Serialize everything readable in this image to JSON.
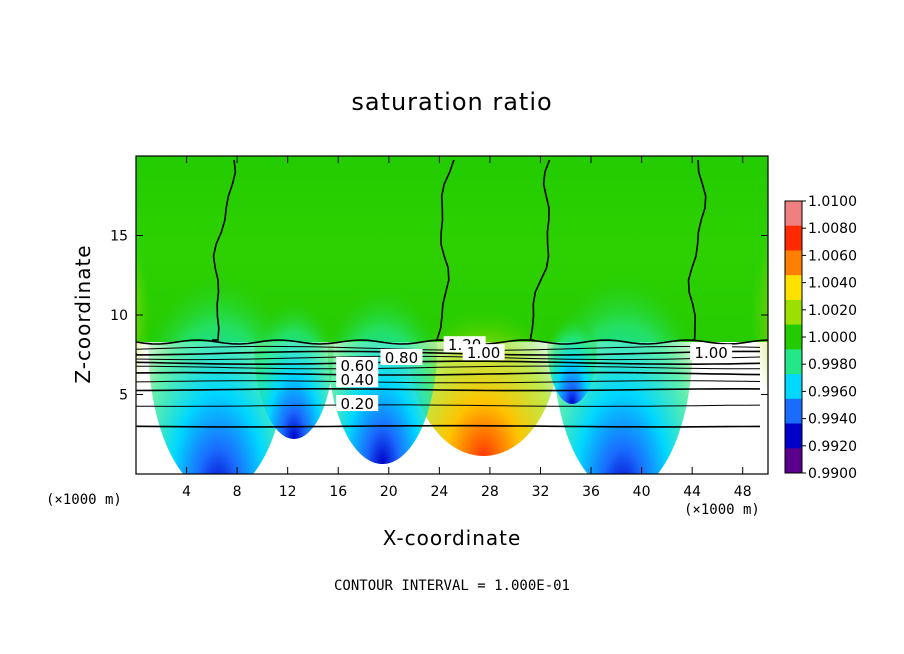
{
  "chart_data": {
    "type": "heatmap",
    "title": "saturation ratio",
    "xlabel": "X-coordinate",
    "ylabel": "Z-coordinate",
    "x_unit_label": "(×1000 m)",
    "x_unit_label_right": "(×1000 m)",
    "xlim": [
      0,
      50
    ],
    "ylim": [
      0,
      20
    ],
    "x_ticks": [
      4,
      8,
      12,
      16,
      20,
      24,
      28,
      32,
      36,
      40,
      44,
      48
    ],
    "y_ticks": [
      5,
      10,
      15
    ],
    "colorbar": {
      "labels": [
        "1.0100",
        "1.0080",
        "1.0060",
        "1.0040",
        "1.0020",
        "1.0000",
        "0.9980",
        "0.9960",
        "0.9940",
        "0.9920",
        "0.9900"
      ],
      "values": [
        1.01,
        1.008,
        1.006,
        1.004,
        1.002,
        1.0,
        0.998,
        0.996,
        0.994,
        0.992,
        0.99
      ],
      "colors": [
        "#f08080",
        "#ff2a00",
        "#ff7f00",
        "#ffe100",
        "#9be000",
        "#22cc00",
        "#22e88a",
        "#00d8ff",
        "#1a6cff",
        "#0000c8",
        "#5a008c"
      ]
    },
    "contour_interval_label": "CONTOUR INTERVAL = 1.000E-01",
    "contour_labels": [
      {
        "text": "0.20",
        "x": 17.5,
        "y": 4.4
      },
      {
        "text": "0.40",
        "x": 17.5,
        "y": 5.9
      },
      {
        "text": "0.60",
        "x": 17.5,
        "y": 6.8
      },
      {
        "text": "0.80",
        "x": 21.0,
        "y": 7.3
      },
      {
        "text": "1.20",
        "x": 26.0,
        "y": 8.1
      },
      {
        "text": "1.00",
        "x": 27.5,
        "y": 7.6
      },
      {
        "text": "1.00",
        "x": 45.5,
        "y": 7.6
      }
    ],
    "cloud_base_z": 8.3,
    "low_level_contour_z": [
      3.0,
      4.3,
      5.3,
      5.8,
      6.3,
      6.7,
      7.0,
      7.3,
      7.6,
      7.9
    ],
    "saturation_boundaries_x": [
      6.0,
      24.0,
      31.5,
      44.0
    ]
  }
}
